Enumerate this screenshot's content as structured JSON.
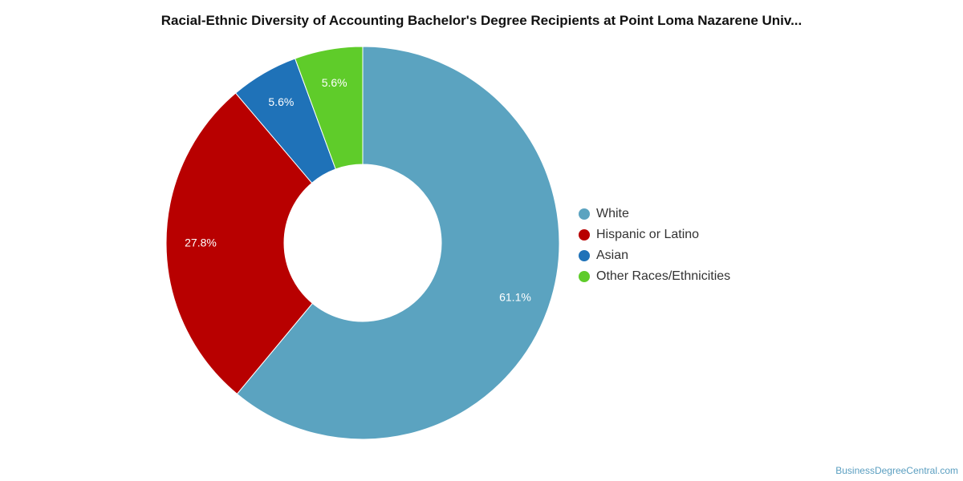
{
  "chart_data": {
    "type": "pie",
    "title": "Racial-Ethnic Diversity of Accounting Bachelor's Degree Recipients at Point Loma Nazarene Univ...",
    "donut": true,
    "legend_position": "right",
    "slices": [
      {
        "name": "White",
        "value": 61.1,
        "label": "61.1%",
        "color": "#5ba3c0"
      },
      {
        "name": "Hispanic or Latino",
        "value": 27.8,
        "label": "27.8%",
        "color": "#b80000"
      },
      {
        "name": "Asian",
        "value": 5.6,
        "label": "5.6%",
        "color": "#1f72b8"
      },
      {
        "name": "Other Races/Ethnicities",
        "value": 5.6,
        "label": "5.6%",
        "color": "#5fcc2a"
      }
    ]
  },
  "footer": {
    "source": "BusinessDegreeCentral.com"
  }
}
